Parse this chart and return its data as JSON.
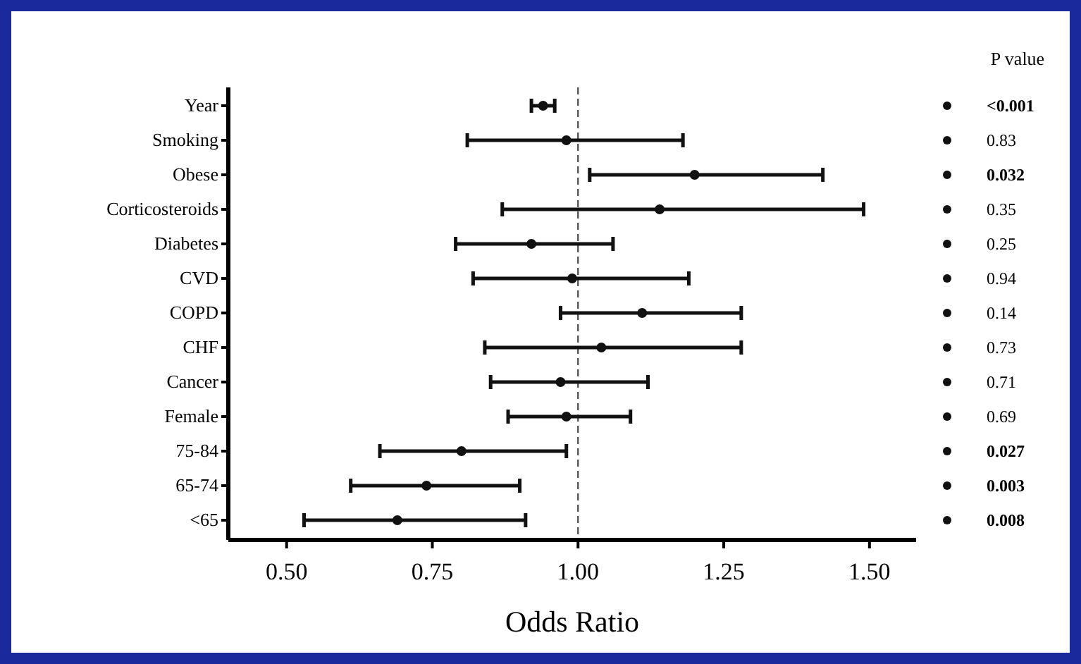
{
  "chart_data": {
    "type": "scatter",
    "orientation": "horizontal",
    "xlabel": "Odds Ratio",
    "categories": [
      "Year",
      "Smoking",
      "Obese",
      "Corticosteroids",
      "Diabetes",
      "CVD",
      "COPD",
      "CHF",
      "Cancer",
      "Female",
      "75-84",
      "65-74",
      "<65"
    ],
    "values": [
      0.94,
      0.98,
      1.2,
      1.14,
      0.92,
      0.99,
      1.11,
      1.04,
      0.97,
      0.98,
      0.8,
      0.74,
      0.69
    ],
    "errors": [
      [
        0.92,
        0.96
      ],
      [
        0.81,
        1.18
      ],
      [
        1.02,
        1.42
      ],
      [
        0.87,
        1.49
      ],
      [
        0.79,
        1.06
      ],
      [
        0.82,
        1.19
      ],
      [
        0.97,
        1.28
      ],
      [
        0.84,
        1.28
      ],
      [
        0.85,
        1.12
      ],
      [
        0.88,
        1.09
      ],
      [
        0.66,
        0.98
      ],
      [
        0.61,
        0.9
      ],
      [
        0.53,
        0.91
      ]
    ],
    "color": "#111111",
    "marker": "circle",
    "xlim": [
      0.4,
      1.58
    ],
    "xticks": [
      {
        "value": 0.5,
        "label": "0.50"
      },
      {
        "value": 0.75,
        "label": "0.75"
      },
      {
        "value": 1,
        "label": "1.00"
      },
      {
        "value": 1.25,
        "label": "1.25"
      },
      {
        "value": 1.5,
        "label": "1.50"
      }
    ],
    "ref_lines": [
      {
        "axis": "x",
        "value": 1,
        "line_style": "dashed",
        "color": "#555555"
      }
    ],
    "annotations": [
      "P value",
      "<0.001",
      "0.83",
      "0.032",
      "0.35",
      "0.25",
      "0.94",
      "0.14",
      "0.73",
      "0.71",
      "0.69",
      "0.027",
      "0.003",
      "0.008"
    ],
    "grid": false
  }
}
